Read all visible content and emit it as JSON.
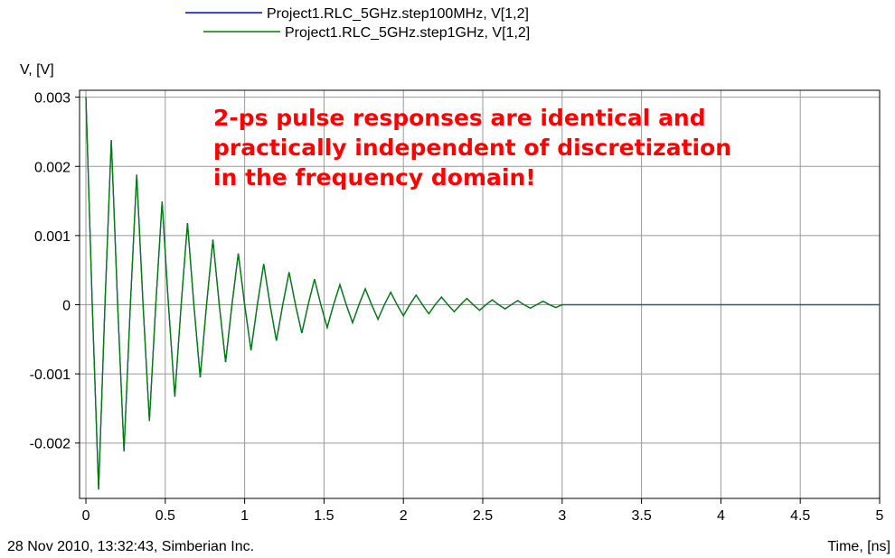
{
  "chart_data": {
    "type": "line",
    "y_axis_label": "V, [V]",
    "x_axis_label": "Time, [ns]",
    "footer": "28 Nov 2010, 13:32:43, Simberian Inc.",
    "annotation": [
      "2-ps pulse responses are identical and",
      "practically independent of discretization",
      "in the frequency domain!"
    ],
    "annotation_color": "#ff0000",
    "x": [
      0,
      0.04,
      0.08,
      0.12,
      0.16,
      0.2,
      0.24,
      0.28,
      0.32,
      0.36,
      0.4,
      0.44,
      0.48,
      0.52,
      0.56,
      0.6,
      0.64,
      0.68,
      0.72,
      0.76,
      0.8,
      0.84,
      0.88,
      0.92,
      0.96,
      1,
      1.04,
      1.08,
      1.12,
      1.16,
      1.2,
      1.24,
      1.28,
      1.32,
      1.36,
      1.4,
      1.44,
      1.48,
      1.52,
      1.56,
      1.6,
      1.64,
      1.68,
      1.72,
      1.76,
      1.8,
      1.84,
      1.88,
      1.92,
      1.96,
      2,
      2.04,
      2.08,
      2.12,
      2.16,
      2.2,
      2.24,
      2.28,
      2.32,
      2.36,
      2.4,
      2.44,
      2.48,
      2.52,
      2.56,
      2.6,
      2.64,
      2.68,
      2.72,
      2.76,
      2.8,
      2.84,
      2.88,
      2.92,
      2.96,
      3,
      3.5,
      4,
      4.5,
      5
    ],
    "series": [
      {
        "name": "Project1.RLC_5GHz.step100MHz, V[1,2]",
        "color": "#0000ff",
        "values": [
          0.003,
          0,
          -0.00267,
          0,
          0.00238,
          0,
          -0.00212,
          0,
          0.00188,
          0,
          -0.00168,
          0,
          0.00149,
          0,
          -0.00133,
          0,
          0.00118,
          0,
          -0.00105,
          0,
          0.00094,
          0,
          -0.00083,
          0,
          0.00074,
          0,
          -0.00066,
          0,
          0.00059,
          0,
          -0.00052,
          0,
          0.00047,
          0,
          -0.00041,
          0,
          0.00037,
          0,
          -0.00033,
          0,
          0.00029,
          0,
          -0.00026,
          0,
          0.00023,
          0,
          -0.00021,
          0,
          0.00018,
          0,
          -0.00016,
          0,
          0.00014,
          0,
          -0.00013,
          0,
          0.00011,
          0,
          -0.0001,
          0,
          9e-05,
          0,
          -8e-05,
          0,
          7e-05,
          0,
          -6e-05,
          0,
          6e-05,
          0,
          -5e-05,
          0,
          5e-05,
          0,
          -4e-05,
          0,
          0,
          0,
          0,
          0
        ]
      },
      {
        "name": "Project1.RLC_5GHz.step1GHz, V[1,2]",
        "color": "#008000",
        "values": [
          0.003,
          0,
          -0.00267,
          0,
          0.00238,
          0,
          -0.00212,
          0,
          0.00188,
          0,
          -0.00168,
          0,
          0.00149,
          0,
          -0.00133,
          0,
          0.00118,
          0,
          -0.00105,
          0,
          0.00094,
          0,
          -0.00083,
          0,
          0.00074,
          0,
          -0.00066,
          0,
          0.00059,
          0,
          -0.00052,
          0,
          0.00047,
          0,
          -0.00041,
          0,
          0.00037,
          0,
          -0.00033,
          0,
          0.00029,
          0,
          -0.00026,
          0,
          0.00023,
          0,
          -0.00021,
          0,
          0.00018,
          0,
          -0.00016,
          0,
          0.00014,
          0,
          -0.00013,
          0,
          0.00011,
          0,
          -0.0001,
          0,
          9e-05,
          0,
          -8e-05,
          0,
          7e-05,
          0,
          -6e-05,
          0,
          6e-05,
          0,
          -5e-05,
          0,
          5e-05,
          0,
          -4e-05,
          0,
          0,
          0,
          0,
          0
        ]
      }
    ],
    "xlim": [
      -0.04,
      5
    ],
    "ylim": [
      -0.0028,
      0.0031
    ],
    "xticks": [
      0,
      0.5,
      1,
      1.5,
      2,
      2.5,
      3,
      3.5,
      4,
      4.5,
      5
    ],
    "yticks": [
      -0.002,
      -0.001,
      0,
      0.001,
      0.002,
      0.003
    ],
    "grid": true
  }
}
